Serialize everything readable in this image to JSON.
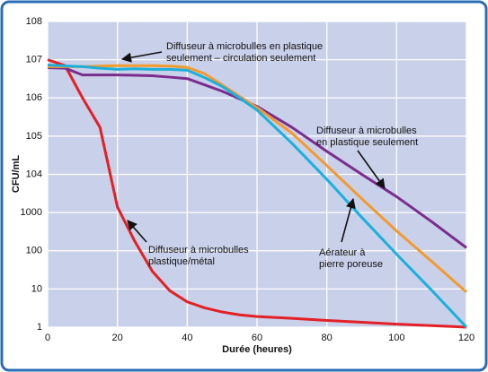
{
  "chart_data": {
    "type": "line",
    "x_label": "Durée (heures)",
    "y_label": "CFU/mL",
    "x": [
      0,
      5,
      10,
      15,
      20,
      25,
      30,
      35,
      40,
      45,
      50,
      55,
      60,
      70,
      80,
      90,
      100,
      110,
      120
    ],
    "series": [
      {
        "color": "#e32026",
        "values": [
          10000000,
          7000000,
          1000000,
          170000,
          1400,
          175,
          29,
          9,
          4.6,
          3.2,
          2.5,
          2.1,
          1.9,
          1.7,
          1.5,
          1.35,
          1.2,
          1.1,
          1
        ]
      },
      {
        "color": "#7b2d8e",
        "values": [
          6200000,
          6000000,
          4000000,
          4000000,
          4000000,
          3900000,
          3800000,
          3500000,
          3200000,
          2200000,
          1500000,
          950000,
          600000,
          170000,
          40000,
          10000,
          2600,
          580,
          120
        ]
      },
      {
        "color": "#f39a2e",
        "values": [
          6600000,
          6600000,
          6600000,
          6800000,
          7000000,
          7000000,
          7000000,
          6800000,
          6300000,
          4300000,
          2200000,
          1100000,
          560000,
          120000,
          17000,
          2300,
          330,
          53,
          8.3
        ]
      },
      {
        "color": "#1bb0dc",
        "values": [
          7300000,
          6900000,
          6600000,
          6000000,
          5600000,
          5800000,
          5600000,
          5600000,
          5300000,
          3400000,
          2000000,
          1000000,
          480000,
          65000,
          7400,
          750,
          81,
          9.3,
          1
        ]
      }
    ],
    "annotations": [
      {
        "lines": [
          "Diffuseur à microbulles en plastique",
          "seulement – circulation seulement"
        ]
      },
      {
        "lines": [
          "Diffuseur à microbulles",
          "en plastique seulement"
        ]
      },
      {
        "lines": [
          "Aérateur à",
          "pierre poreuse"
        ]
      },
      {
        "lines": [
          "Diffuseur à microbulles",
          "plastique/métal"
        ]
      }
    ],
    "xlim": [
      0,
      120
    ],
    "xticks": [
      0,
      20,
      40,
      60,
      80,
      100,
      120
    ],
    "ylim": [
      1,
      100000000
    ],
    "log_y": true,
    "yticks": [
      1,
      10,
      100,
      1000,
      {
        "value": 10000,
        "label": "104"
      },
      {
        "value": 100000,
        "label": "105"
      },
      {
        "value": 1000000,
        "label": "106"
      },
      {
        "value": 10000000,
        "label": "107"
      },
      {
        "value": 100000000,
        "label": "108"
      }
    ],
    "grid": true
  }
}
